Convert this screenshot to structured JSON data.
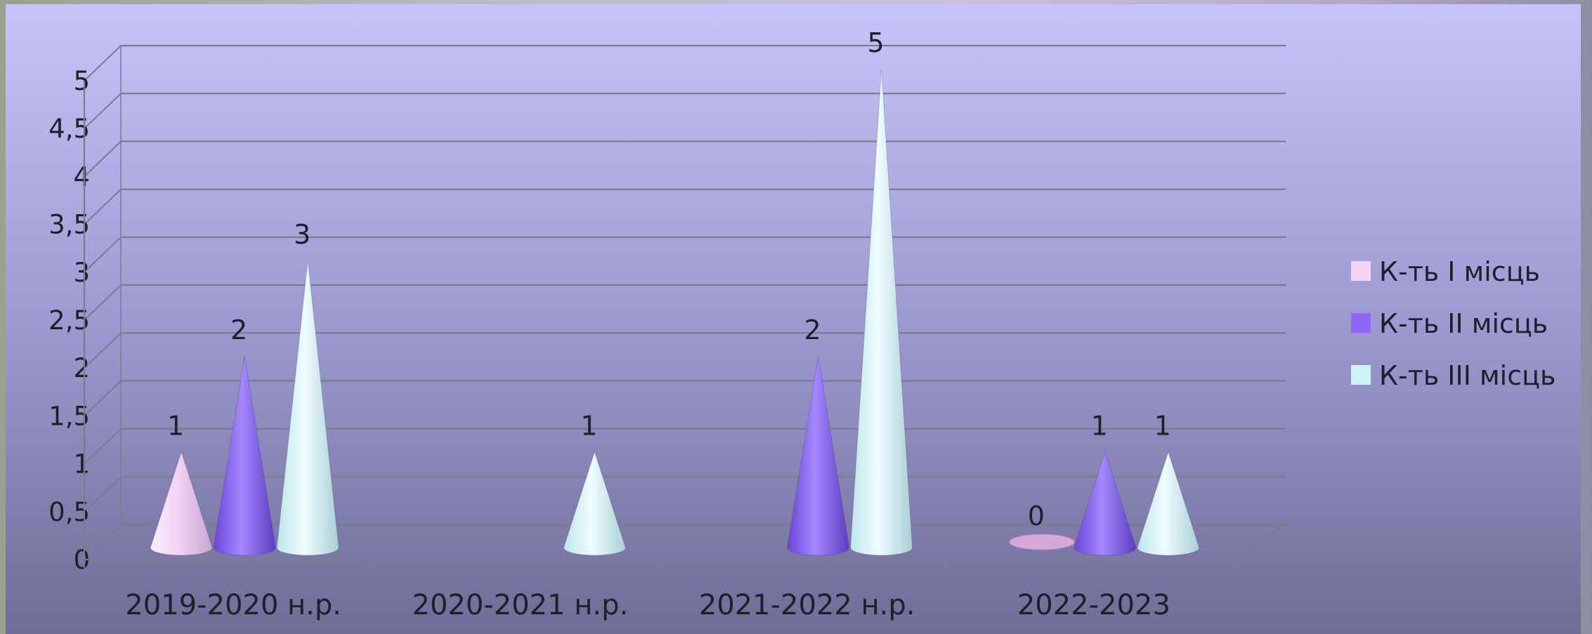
{
  "chart_data": {
    "type": "bar",
    "style": "3d-cone",
    "categories": [
      "2019-2020 н.р.",
      "2020-2021 н.р.",
      "2021-2022 н.р.",
      "2022-2023"
    ],
    "series": [
      {
        "name": "К-ть І місць",
        "values": [
          1,
          null,
          null,
          0
        ],
        "color": "#f3d4f4"
      },
      {
        "name": "К-ть ІІ місць",
        "values": [
          2,
          null,
          2,
          1
        ],
        "color": "#8f66f5"
      },
      {
        "name": "К-ть ІІІ місць",
        "values": [
          3,
          1,
          5,
          1
        ],
        "color": "#cdf2f7"
      }
    ],
    "y_ticks": [
      "0",
      "0,5",
      "1",
      "1,5",
      "2",
      "2,5",
      "3",
      "3,5",
      "4",
      "4,5",
      "5"
    ],
    "ylim": [
      0,
      5
    ],
    "grid": true,
    "legend": "right",
    "data_labels": true
  }
}
